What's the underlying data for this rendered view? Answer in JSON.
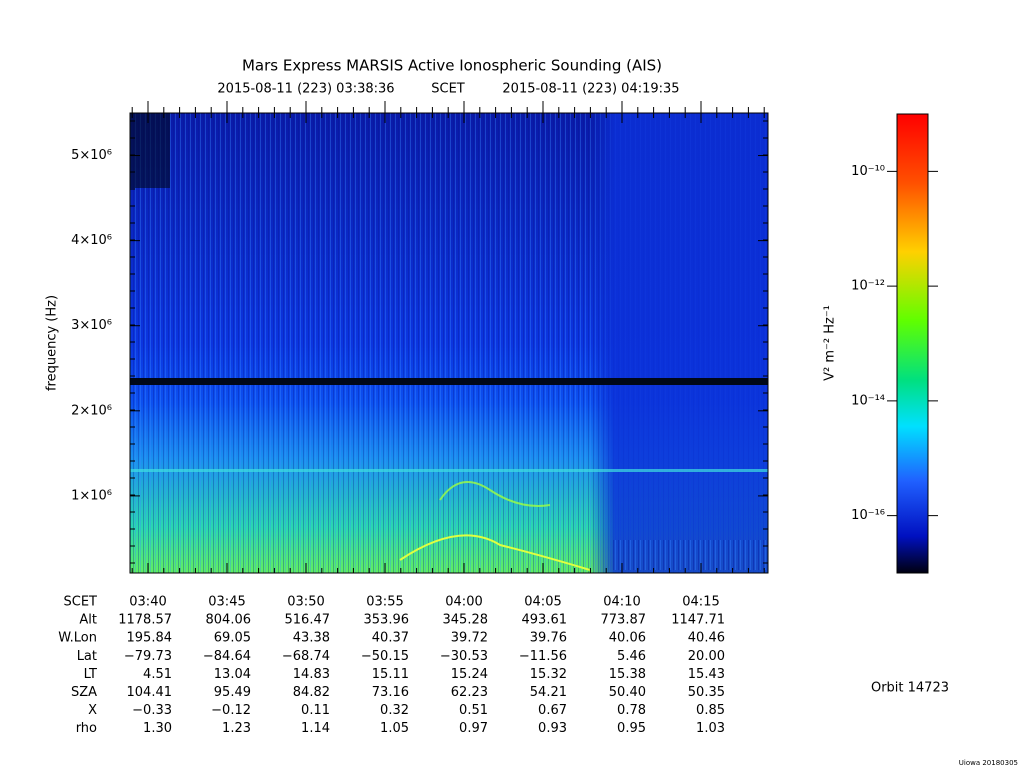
{
  "title": "Mars Express MARSIS Active Ionospheric Sounding (AIS)",
  "subtitle": {
    "start": "2015-08-11 (223) 03:38:36",
    "scale": "SCET",
    "end": "2015-08-11 (223) 04:19:35"
  },
  "y_axis": {
    "label": "frequency (Hz)",
    "lim": [
      94000,
      5500000
    ],
    "ticks": [
      {
        "value": 1000000,
        "label": "1×10⁶"
      },
      {
        "value": 2000000,
        "label": "2×10⁶"
      },
      {
        "value": 3000000,
        "label": "3×10⁶"
      },
      {
        "value": 4000000,
        "label": "4×10⁶"
      },
      {
        "value": 5000000,
        "label": "5×10⁶"
      }
    ]
  },
  "colorbar": {
    "label": "V² m⁻² Hz⁻¹",
    "log": true,
    "lim": [
      1e-17,
      1e-09
    ],
    "ticks": [
      {
        "value": 1e-10,
        "label": "10⁻¹⁰"
      },
      {
        "value": 1e-12,
        "label": "10⁻¹²"
      },
      {
        "value": 1e-14,
        "label": "10⁻¹⁴"
      },
      {
        "value": 1e-16,
        "label": "10⁻¹⁶"
      }
    ]
  },
  "ephemeris": {
    "rows": [
      [
        "SCET",
        "03:40",
        "03:45",
        "03:50",
        "03:55",
        "04:00",
        "04:05",
        "04:10",
        "04:15"
      ],
      [
        "Alt",
        "1178.57",
        "804.06",
        "516.47",
        "353.96",
        "345.28",
        "493.61",
        "773.87",
        "1147.71"
      ],
      [
        "W.Lon",
        "195.84",
        "69.05",
        "43.38",
        "40.37",
        "39.72",
        "39.76",
        "40.06",
        "40.46"
      ],
      [
        "Lat",
        "−79.73",
        "−84.64",
        "−68.74",
        "−50.15",
        "−30.53",
        "−11.56",
        "5.46",
        "20.00"
      ],
      [
        "LT",
        "4.51",
        "13.04",
        "14.83",
        "15.11",
        "15.24",
        "15.32",
        "15.38",
        "15.43"
      ],
      [
        "SZA",
        "104.41",
        "95.49",
        "84.82",
        "73.16",
        "62.23",
        "54.21",
        "50.40",
        "50.35"
      ],
      [
        "X",
        "−0.33",
        "−0.12",
        "0.11",
        "0.32",
        "0.51",
        "0.67",
        "0.78",
        "0.85"
      ],
      [
        "rho",
        "1.30",
        "1.23",
        "1.14",
        "1.05",
        "0.97",
        "0.93",
        "0.95",
        "1.03"
      ]
    ]
  },
  "orbit": "Orbit 14723",
  "footer": "Uiowa 20180305"
}
